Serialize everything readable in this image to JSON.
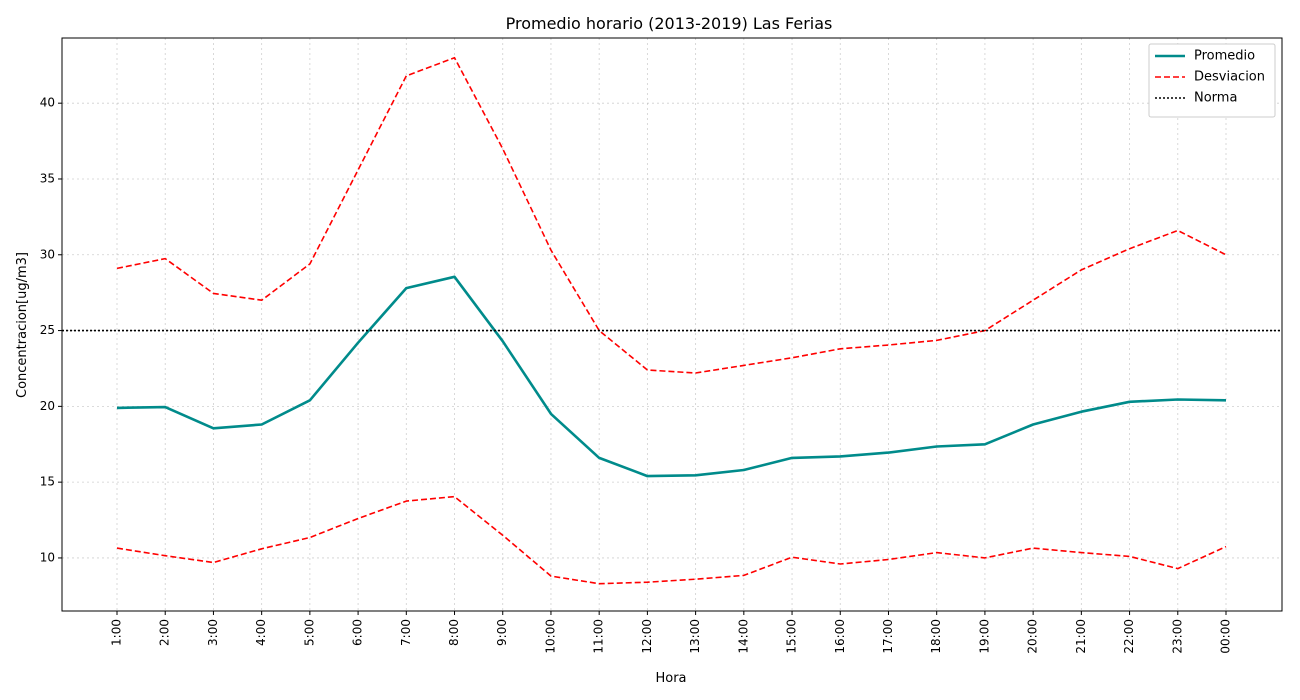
{
  "chart_data": {
    "type": "line",
    "title": "Promedio horario (2013-2019) Las Ferias",
    "xlabel": "Hora",
    "ylabel": "Concentracion[ug/m3]",
    "categories": [
      "1:00",
      "2:00",
      "3:00",
      "4:00",
      "5:00",
      "6:00",
      "7:00",
      "8:00",
      "9:00",
      "10:00",
      "11:00",
      "12:00",
      "13:00",
      "14:00",
      "15:00",
      "16:00",
      "17:00",
      "18:00",
      "19:00",
      "20:00",
      "21:00",
      "22:00",
      "23:00",
      "00:00"
    ],
    "ylim": [
      6.5,
      44.3
    ],
    "yticks": [
      10,
      15,
      20,
      25,
      30,
      35,
      40
    ],
    "grid": true,
    "legend_position": "top-right",
    "series": [
      {
        "name": "Promedio",
        "color": "#008b8b",
        "style": "solid",
        "values": [
          19.9,
          19.95,
          18.55,
          18.8,
          20.4,
          24.2,
          27.8,
          28.55,
          24.3,
          19.5,
          16.6,
          15.4,
          15.45,
          15.8,
          16.6,
          16.7,
          16.95,
          17.35,
          17.5,
          18.8,
          19.65,
          20.3,
          20.45,
          20.4
        ]
      },
      {
        "name": "Desviacion",
        "color": "#ff0000",
        "style": "dashed",
        "values": [
          29.1,
          29.75,
          27.45,
          27.0,
          29.4,
          35.6,
          41.8,
          43.0,
          37.0,
          30.3,
          25.0,
          22.4,
          22.2,
          22.7,
          23.2,
          23.8,
          24.05,
          24.35,
          25.0,
          27.0,
          29.0,
          30.4,
          31.6,
          30.0
        ]
      },
      {
        "name": "",
        "color": "#ff0000",
        "style": "dashed",
        "values": [
          10.65,
          10.15,
          9.7,
          10.6,
          11.35,
          12.6,
          13.75,
          14.05,
          11.5,
          8.8,
          8.3,
          8.4,
          8.6,
          8.85,
          10.05,
          9.6,
          9.9,
          10.35,
          10.0,
          10.65,
          10.35,
          10.1,
          9.3,
          10.75
        ]
      },
      {
        "name": "Norma",
        "color": "#000000",
        "style": "dotted",
        "constant": 25
      }
    ]
  }
}
